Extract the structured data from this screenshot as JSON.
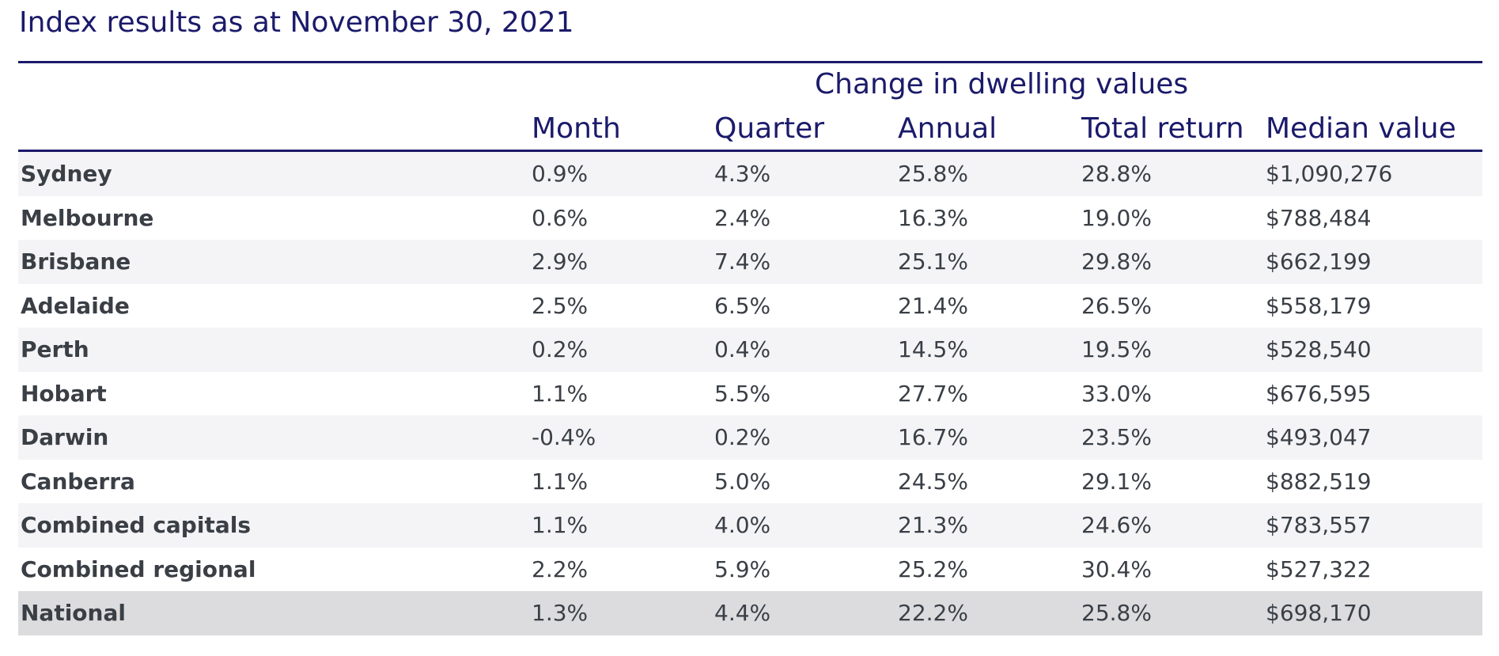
{
  "title": "Index results as at November 30, 2021",
  "chart_data": {
    "type": "table",
    "group_header": "Change in dwelling values",
    "columns": [
      "Month",
      "Quarter",
      "Annual",
      "Total return",
      "Median value"
    ],
    "rows": [
      {
        "region": "Sydney",
        "values": [
          "0.9%",
          "4.3%",
          "25.8%",
          "28.8%",
          "$1,090,276"
        ]
      },
      {
        "region": "Melbourne",
        "values": [
          "0.6%",
          "2.4%",
          "16.3%",
          "19.0%",
          "$788,484"
        ]
      },
      {
        "region": "Brisbane",
        "values": [
          "2.9%",
          "7.4%",
          "25.1%",
          "29.8%",
          "$662,199"
        ]
      },
      {
        "region": "Adelaide",
        "values": [
          "2.5%",
          "6.5%",
          "21.4%",
          "26.5%",
          "$558,179"
        ]
      },
      {
        "region": "Perth",
        "values": [
          "0.2%",
          "0.4%",
          "14.5%",
          "19.5%",
          "$528,540"
        ]
      },
      {
        "region": "Hobart",
        "values": [
          "1.1%",
          "5.5%",
          "27.7%",
          "33.0%",
          "$676,595"
        ]
      },
      {
        "region": "Darwin",
        "values": [
          "-0.4%",
          "0.2%",
          "16.7%",
          "23.5%",
          "$493,047"
        ]
      },
      {
        "region": "Canberra",
        "values": [
          "1.1%",
          "5.0%",
          "24.5%",
          "29.1%",
          "$882,519"
        ]
      },
      {
        "region": "Combined capitals",
        "values": [
          "1.1%",
          "4.0%",
          "21.3%",
          "24.6%",
          "$783,557"
        ]
      },
      {
        "region": "Combined regional",
        "values": [
          "2.2%",
          "5.9%",
          "25.2%",
          "30.4%",
          "$527,322"
        ]
      },
      {
        "region": "National",
        "values": [
          "1.3%",
          "4.4%",
          "22.2%",
          "25.8%",
          "$698,170"
        ]
      }
    ]
  },
  "colors": {
    "header_text": "#1b1a6a",
    "body_text": "#3a3f46",
    "row_shade": "#f4f4f6",
    "national_row": "#dcdcde"
  }
}
